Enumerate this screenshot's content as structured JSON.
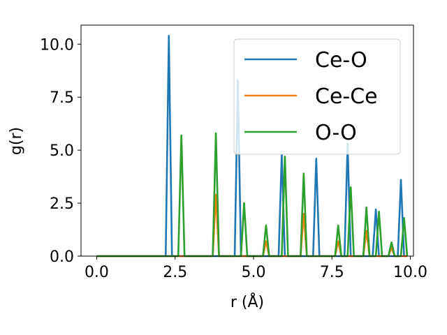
{
  "chart_data": {
    "type": "line",
    "title": "",
    "xlabel": "r (Å)",
    "ylabel": "g(r)",
    "xlim": [
      -0.5,
      10.1
    ],
    "ylim": [
      0,
      10.9
    ],
    "xticks": [
      0.0,
      2.5,
      5.0,
      7.5,
      10.0
    ],
    "xtick_labels": [
      "0.0",
      "2.5",
      "5.0",
      "7.5",
      "10.0"
    ],
    "yticks": [
      0.0,
      2.5,
      5.0,
      7.5,
      10.0
    ],
    "ytick_labels": [
      "0.0",
      "2.5",
      "5.0",
      "7.5",
      "10.0"
    ],
    "grid": false,
    "legend_position": "top-right",
    "series": [
      {
        "name": "Ce-O",
        "color": "#1f77b4",
        "peaks": [
          [
            2.3,
            10.4
          ],
          [
            4.5,
            8.3
          ],
          [
            5.9,
            4.8
          ],
          [
            7.0,
            4.6
          ],
          [
            8.0,
            5.3
          ],
          [
            8.9,
            2.2
          ],
          [
            9.7,
            3.6
          ]
        ]
      },
      {
        "name": "Ce-Ce",
        "color": "#ff7f0e",
        "peaks": [
          [
            3.8,
            2.9
          ],
          [
            5.4,
            0.7
          ],
          [
            6.6,
            2.0
          ],
          [
            7.7,
            0.7
          ],
          [
            8.6,
            1.2
          ],
          [
            9.4,
            0.4
          ]
        ]
      },
      {
        "name": "O-O",
        "color": "#2ca02c",
        "peaks": [
          [
            2.7,
            5.7
          ],
          [
            3.8,
            5.8
          ],
          [
            4.7,
            2.5
          ],
          [
            5.4,
            1.45
          ],
          [
            6.0,
            4.7
          ],
          [
            6.6,
            3.9
          ],
          [
            7.7,
            1.45
          ],
          [
            8.1,
            3.25
          ],
          [
            8.6,
            2.3
          ],
          [
            9.0,
            2.1
          ],
          [
            9.4,
            0.65
          ],
          [
            9.8,
            1.8
          ]
        ]
      }
    ]
  }
}
